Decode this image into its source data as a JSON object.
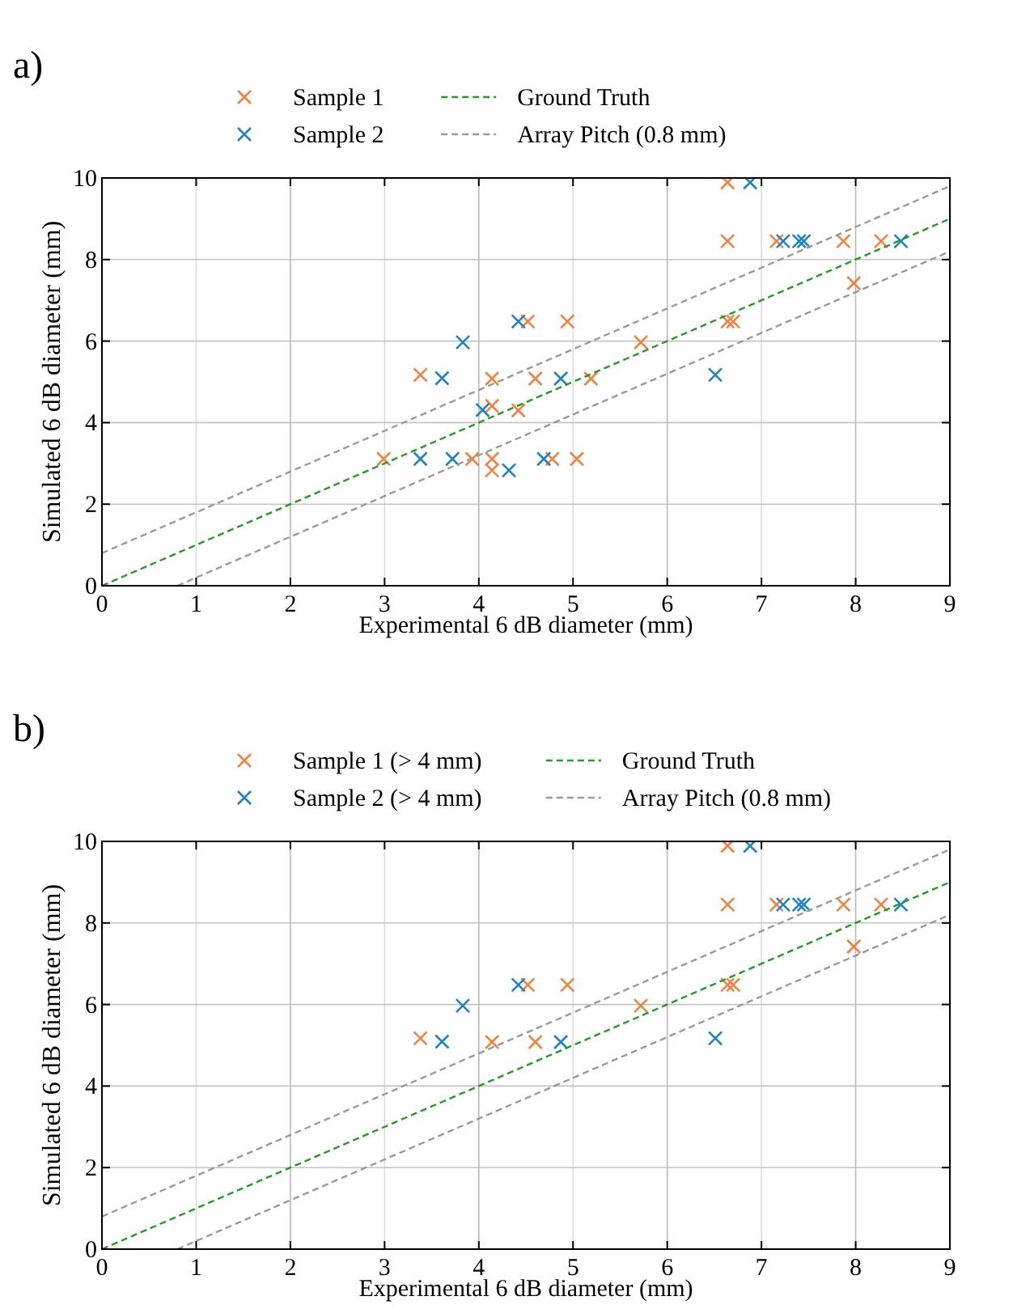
{
  "chart_data": [
    {
      "type": "scatter",
      "title": "a)",
      "xlabel": "Experimental 6 dB diameter (mm)",
      "ylabel": "Simulated 6 dB diameter (mm)",
      "xlim": [
        0,
        9
      ],
      "ylim": [
        0,
        10
      ],
      "xticks": [
        0,
        1,
        2,
        3,
        4,
        5,
        6,
        7,
        8,
        9
      ],
      "yticks": [
        0,
        2,
        4,
        6,
        8,
        10
      ],
      "grid": true,
      "legend": "top",
      "series": [
        {
          "name": "Sample 1",
          "marker": "cross",
          "color": "#f5813f",
          "x": [
            2.99,
            3.38,
            3.93,
            4.14,
            4.14,
            4.14,
            4.14,
            4.42,
            4.52,
            4.6,
            4.78,
            4.94,
            5.04,
            5.19,
            5.72,
            6.64,
            6.64,
            6.64,
            6.7,
            7.16,
            7.87,
            7.98,
            8.27
          ],
          "values": [
            3.11,
            5.17,
            3.11,
            5.08,
            4.41,
            3.11,
            2.83,
            4.3,
            6.48,
            5.08,
            3.11,
            6.48,
            3.11,
            5.08,
            5.97,
            9.89,
            8.45,
            6.48,
            6.48,
            8.45,
            8.45,
            7.42,
            8.45
          ]
        },
        {
          "name": "Sample 2",
          "marker": "cross",
          "color": "#1f83c8",
          "x": [
            3.38,
            3.61,
            3.72,
            3.83,
            4.04,
            4.32,
            4.42,
            4.69,
            4.87,
            6.51,
            6.88,
            7.23,
            7.4,
            7.45,
            8.48
          ],
          "values": [
            3.11,
            5.09,
            3.11,
            5.97,
            4.31,
            2.83,
            6.48,
            3.11,
            5.08,
            5.17,
            9.89,
            8.45,
            8.45,
            8.45,
            8.45
          ]
        },
        {
          "name": "Ground Truth",
          "type": "line",
          "line_style": "dashed",
          "color": "#1f9e1f",
          "x": [
            0,
            9
          ],
          "values": [
            0,
            9
          ]
        },
        {
          "name": "Array Pitch (0.8 mm)",
          "type": "line",
          "line_style": "dashed",
          "color": "#9a9a9a",
          "x": [
            0,
            9
          ],
          "values": [
            0.8,
            9.8
          ]
        },
        {
          "type": "line",
          "line_style": "dashed",
          "color": "#9a9a9a",
          "x": [
            0.8,
            9
          ],
          "values": [
            0,
            8.2
          ]
        }
      ]
    },
    {
      "type": "scatter",
      "title": "b)",
      "xlabel": "Experimental 6 dB diameter (mm)",
      "ylabel": "Simulated 6 dB diameter (mm)",
      "xlim": [
        0,
        9
      ],
      "ylim": [
        0,
        10
      ],
      "xticks": [
        0,
        1,
        2,
        3,
        4,
        5,
        6,
        7,
        8,
        9
      ],
      "yticks": [
        0,
        2,
        4,
        6,
        8,
        10
      ],
      "grid": true,
      "legend": "top",
      "series": [
        {
          "name": "Sample 1 (> 4 mm)",
          "marker": "cross",
          "color": "#f5813f",
          "x": [
            3.38,
            4.14,
            4.52,
            4.6,
            4.94,
            5.72,
            6.64,
            6.64,
            6.64,
            6.7,
            7.16,
            7.87,
            7.98,
            8.27
          ],
          "values": [
            5.17,
            5.08,
            6.48,
            5.08,
            6.48,
            5.97,
            9.89,
            8.45,
            6.48,
            6.48,
            8.45,
            8.45,
            7.42,
            8.45
          ]
        },
        {
          "name": "Sample 2 (> 4 mm)",
          "marker": "cross",
          "color": "#1f83c8",
          "x": [
            3.61,
            3.83,
            4.42,
            4.87,
            6.51,
            6.88,
            7.23,
            7.4,
            7.45,
            8.48
          ],
          "values": [
            5.09,
            5.97,
            6.48,
            5.08,
            5.17,
            9.89,
            8.45,
            8.45,
            8.45,
            8.45
          ]
        },
        {
          "name": "Ground Truth",
          "type": "line",
          "line_style": "dashed",
          "color": "#1f9e1f",
          "x": [
            0,
            9
          ],
          "values": [
            0,
            9
          ]
        },
        {
          "name": "Array Pitch (0.8 mm)",
          "type": "line",
          "line_style": "dashed",
          "color": "#9a9a9a",
          "x": [
            0,
            9
          ],
          "values": [
            0.8,
            9.8
          ]
        },
        {
          "type": "line",
          "line_style": "dashed",
          "color": "#9a9a9a",
          "x": [
            0.8,
            9
          ],
          "values": [
            0,
            8.2
          ]
        }
      ]
    }
  ]
}
